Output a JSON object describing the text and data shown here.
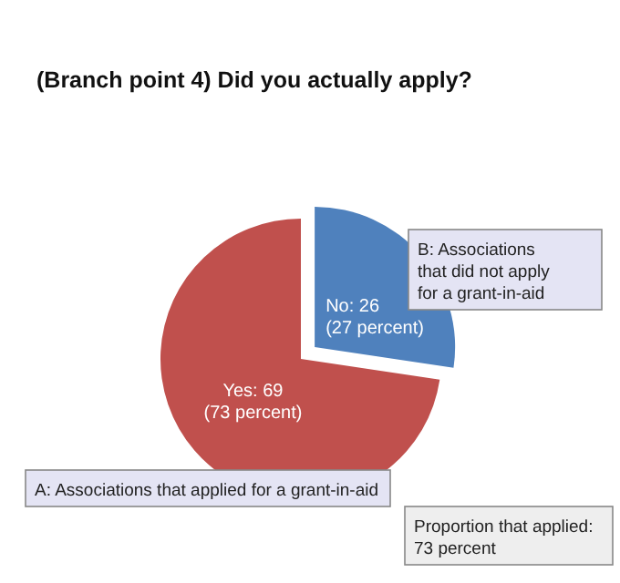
{
  "chart_data": {
    "type": "pie",
    "title": "(Branch point 4) Did you actually apply?",
    "categories": [
      "A: Associations that applied for a grant-in-aid",
      "B: Associations that did not apply for a grant-in-aid"
    ],
    "values": [
      69,
      26
    ],
    "colors": [
      "#c0504d",
      "#4f81bd"
    ],
    "value_labels": [
      "Yes: 69\n(73 percent)",
      "No: 26\n(27 percent)"
    ],
    "annotations": [
      "Proportion that applied: 73 percent"
    ]
  }
}
